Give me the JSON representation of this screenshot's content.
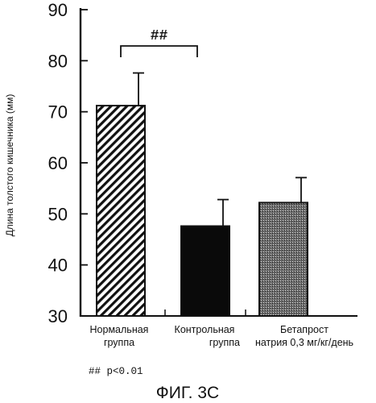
{
  "chart_data": {
    "type": "bar",
    "ylabel": "Длина толстого кишечника (мм)",
    "ylim": [
      30,
      90
    ],
    "yticks": [
      30,
      40,
      50,
      60,
      70,
      80,
      90
    ],
    "categories": [
      [
        "Нормальная",
        "группа"
      ],
      [
        "Контрольная",
        "группа"
      ],
      [
        "Бетапрост",
        "натрия 0,3 мг/кг/день"
      ]
    ],
    "values": [
      71.2,
      47.6,
      52.2
    ],
    "errors": [
      6.4,
      5.2,
      4.9
    ],
    "fills": [
      "hatch",
      "black",
      "dots"
    ],
    "significance": {
      "between": [
        0,
        1
      ],
      "label": "##"
    },
    "footnote": "## p<0.01",
    "figure_label": "ФИГ. 3С"
  }
}
